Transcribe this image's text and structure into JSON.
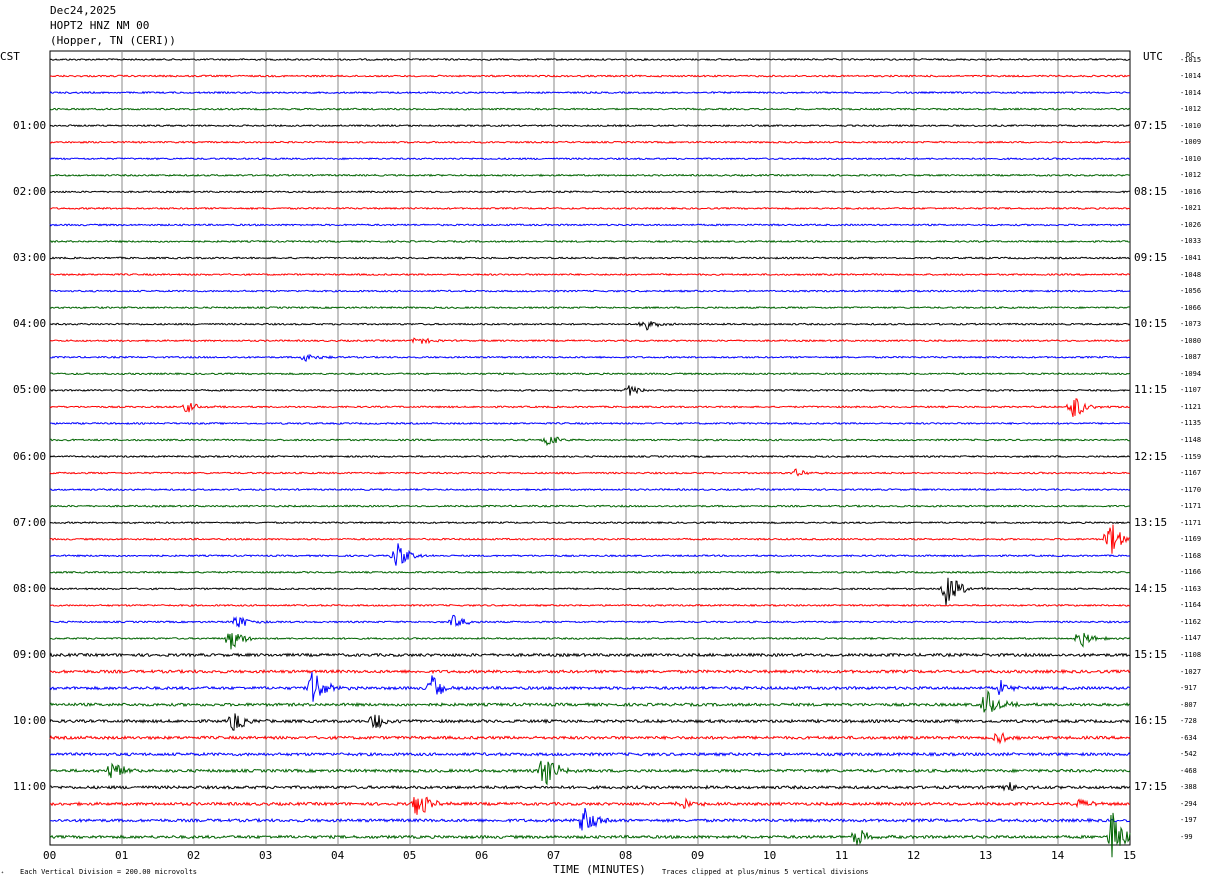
{
  "header": {
    "date": "Dec24,2025",
    "station": "HOPT2 HNZ NM 00",
    "location": "(Hopper, TN (CERI))"
  },
  "left_tz_label": "CST",
  "right_tz_label": "UTC",
  "dc_label": "DC",
  "footer": {
    "scale_note": "Each Vertical Division =  200.00 microvolts",
    "clip_note": "Traces clipped at plus/minus 5 vertical divisions",
    "corner_mark": "ᐩ"
  },
  "colors": {
    "trace_cycle": [
      "#000000",
      "#ff0000",
      "#0000ff",
      "#006400"
    ],
    "grid": "#888888"
  },
  "chart_data": {
    "type": "line",
    "title": "",
    "xlabel": "TIME (MINUTES)",
    "ylabel": "",
    "xlim": [
      0,
      15
    ],
    "x_ticks": [
      "00",
      "01",
      "02",
      "03",
      "04",
      "05",
      "06",
      "07",
      "08",
      "09",
      "10",
      "11",
      "12",
      "13",
      "14",
      "15"
    ],
    "left_hour_labels": [
      "01:00",
      "02:00",
      "03:00",
      "04:00",
      "05:00",
      "06:00",
      "07:00",
      "08:00",
      "09:00",
      "10:00",
      "11:00"
    ],
    "right_hour_labels": [
      "07:15",
      "08:15",
      "09:15",
      "10:15",
      "11:15",
      "12:15",
      "13:15",
      "14:15",
      "15:15",
      "16:15",
      "17:15"
    ],
    "dc_offsets": [
      "-1015",
      "-1014",
      "-1014",
      "-1012",
      "-1010",
      "-1009",
      "-1010",
      "-1012",
      "-1016",
      "-1021",
      "-1026",
      "-1033",
      "-1041",
      "-1048",
      "-1056",
      "-1066",
      "-1073",
      "-1080",
      "-1087",
      "-1094",
      "-1107",
      "-1121",
      "-1135",
      "-1148",
      "-1159",
      "-1167",
      "-1170",
      "-1171",
      "-1171",
      "-1169",
      "-1168",
      "-1166",
      "-1163",
      "-1164",
      "-1162",
      "-1147",
      "-1108",
      "-1027",
      "-917",
      "-807",
      "-728",
      "-634",
      "-542",
      "-468",
      "-388",
      "-294",
      "-197",
      "-99"
    ],
    "rows": 48,
    "events": [
      {
        "row": 16,
        "minute": 8.25,
        "amp": 7
      },
      {
        "row": 17,
        "minute": 5.1,
        "amp": 5
      },
      {
        "row": 18,
        "minute": 3.55,
        "amp": 5
      },
      {
        "row": 20,
        "minute": 8.05,
        "amp": 6
      },
      {
        "row": 21,
        "minute": 1.9,
        "amp": 6
      },
      {
        "row": 21,
        "minute": 14.2,
        "amp": 16
      },
      {
        "row": 23,
        "minute": 6.9,
        "amp": 7
      },
      {
        "row": 25,
        "minute": 10.35,
        "amp": 4
      },
      {
        "row": 29,
        "minute": 14.7,
        "amp": 22
      },
      {
        "row": 30,
        "minute": 4.8,
        "amp": 15
      },
      {
        "row": 32,
        "minute": 12.45,
        "amp": 22
      },
      {
        "row": 34,
        "minute": 2.6,
        "amp": 8
      },
      {
        "row": 34,
        "minute": 5.6,
        "amp": 8
      },
      {
        "row": 35,
        "minute": 2.5,
        "amp": 13
      },
      {
        "row": 35,
        "minute": 14.3,
        "amp": 11
      },
      {
        "row": 38,
        "minute": 3.65,
        "amp": 20
      },
      {
        "row": 38,
        "minute": 5.3,
        "amp": 16
      },
      {
        "row": 38,
        "minute": 13.2,
        "amp": 8
      },
      {
        "row": 39,
        "minute": 13.0,
        "amp": 16
      },
      {
        "row": 40,
        "minute": 2.55,
        "amp": 12
      },
      {
        "row": 40,
        "minute": 4.5,
        "amp": 11
      },
      {
        "row": 41,
        "minute": 13.15,
        "amp": 8
      },
      {
        "row": 43,
        "minute": 0.85,
        "amp": 12
      },
      {
        "row": 43,
        "minute": 6.85,
        "amp": 22
      },
      {
        "row": 44,
        "minute": 13.3,
        "amp": 6
      },
      {
        "row": 45,
        "minute": 5.1,
        "amp": 18
      },
      {
        "row": 45,
        "minute": 8.75,
        "amp": 8
      },
      {
        "row": 45,
        "minute": 14.3,
        "amp": 6
      },
      {
        "row": 46,
        "minute": 7.4,
        "amp": 22
      },
      {
        "row": 47,
        "minute": 11.2,
        "amp": 10
      },
      {
        "row": 47,
        "minute": 14.75,
        "amp": 30
      }
    ]
  }
}
